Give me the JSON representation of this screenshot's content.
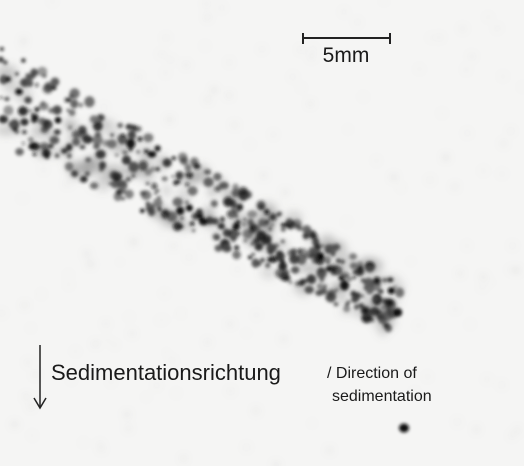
{
  "scale_bar": {
    "label": "5mm"
  },
  "caption": {
    "main": "Sedimentationsrichtung",
    "translation_line1": "/ Direction of",
    "translation_line2": "sedimentation"
  }
}
